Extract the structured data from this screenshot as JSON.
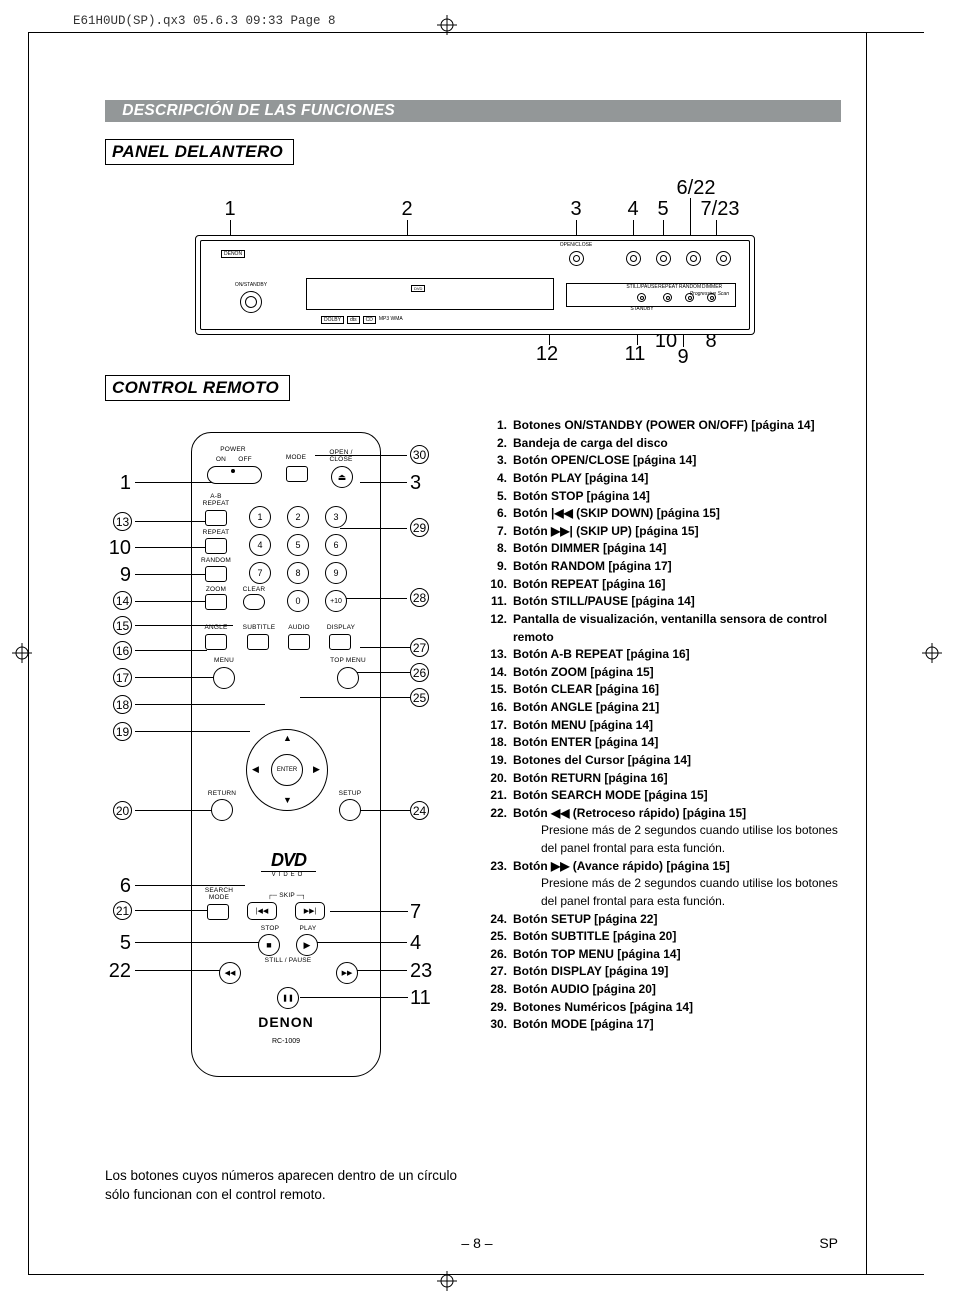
{
  "meta": {
    "header_line": "E61H0UD(SP).qx3  05.6.3 09:33  Page 8",
    "page_number": "– 8 –",
    "lang_code": "SP"
  },
  "section_bar": "DESCRIPCIÓN DE LAS FUNCIONES",
  "panel_title": "PANEL DELANTERO",
  "remote_title": "CONTROL REMOTO",
  "panel_top_numbers": {
    "n1": "1",
    "n2": "2",
    "n3": "3",
    "n4": "4",
    "n5": "5",
    "n622": "6/22",
    "n723": "7/23"
  },
  "panel_bottom_numbers": {
    "n12": "12",
    "n11": "11",
    "n10": "10",
    "n9": "9",
    "n8": "8"
  },
  "panel_labels": {
    "brand": "DENON",
    "openclose": "OPEN/CLOSE",
    "stillpause": "STILL/PAUSE",
    "repeat": "REPEAT",
    "random": "RANDOM",
    "dimmer": "DIMMER",
    "standby": "STANDBY",
    "onstb": "ON/STANDBY",
    "formats": "MP3  WMA"
  },
  "remote_labels": {
    "power": "POWER",
    "on": "ON",
    "off": "OFF",
    "mode": "MODE",
    "openclose": "OPEN /\nCLOSE",
    "abrepeat": "A-B\nREPEAT",
    "repeat": "REPEAT",
    "random": "RANDOM",
    "zoom": "ZOOM",
    "clear": "CLEAR",
    "angle": "ANGLE",
    "subtitle": "SUBTITLE",
    "audio": "AUDIO",
    "display": "DISPLAY",
    "menu": "MENU",
    "topmenu": "TOP MENU",
    "enter": "ENTER",
    "return": "RETURN",
    "setup": "SETUP",
    "searchmode": "SEARCH\nMODE",
    "skip": "SKIP",
    "stop": "STOP",
    "play": "PLAY",
    "stillpause": "STILL / PAUSE",
    "brand": "DENON",
    "model": "RC-1009",
    "d1": "1",
    "d2": "2",
    "d3": "3",
    "d4": "4",
    "d5": "5",
    "d6": "6",
    "d7": "7",
    "d8": "8",
    "d9": "9",
    "d0": "0",
    "dp10": "+10",
    "dvd": "DVD",
    "video": "VIDEO"
  },
  "left_callouts": {
    "c1": "1",
    "c13": "13",
    "c10": "10",
    "c9": "9",
    "c14": "14",
    "c15": "15",
    "c16": "16",
    "c17": "17",
    "c18": "18",
    "c19": "19",
    "c20": "20",
    "c6": "6",
    "c21": "21",
    "c5": "5",
    "c22": "22"
  },
  "right_callouts": {
    "c30": "30",
    "c3": "3",
    "c29": "29",
    "c28": "28",
    "c27": "27",
    "c26": "26",
    "c25": "25",
    "c24": "24",
    "c7": "7",
    "c4": "4",
    "c23": "23",
    "c11": "11"
  },
  "functions": [
    {
      "n": "1.",
      "b": "Botones ON/STANDBY (POWER ON/OFF) [página 14]"
    },
    {
      "n": "2.",
      "b": "Bandeja de carga del disco"
    },
    {
      "n": "3.",
      "b": "Botón OPEN/CLOSE [página 14]"
    },
    {
      "n": "4.",
      "b": "Botón PLAY [página 14]"
    },
    {
      "n": "5.",
      "b": "Botón STOP [página 14]"
    },
    {
      "n": "6.",
      "b": "Botón |◀◀ (SKIP DOWN) [página 15]"
    },
    {
      "n": "7.",
      "b": "Botón ▶▶| (SKIP UP) [página 15]"
    },
    {
      "n": "8.",
      "b": "Botón DIMMER [página 14]"
    },
    {
      "n": "9.",
      "b": "Botón RANDOM [página 17]"
    },
    {
      "n": "10.",
      "b": "Botón REPEAT [página 16]"
    },
    {
      "n": "11.",
      "b": "Botón STILL/PAUSE [página 14]"
    },
    {
      "n": "12.",
      "b": "Pantalla de visualización, ventanilla sensora de control remoto"
    },
    {
      "n": "13.",
      "b": "Botón A-B REPEAT [página 16]"
    },
    {
      "n": "14.",
      "b": "Botón ZOOM [página 15]"
    },
    {
      "n": "15.",
      "b": "Botón CLEAR [página 16]"
    },
    {
      "n": "16.",
      "b": "Botón ANGLE [página 21]"
    },
    {
      "n": "17.",
      "b": "Botón MENU [página 14]"
    },
    {
      "n": "18.",
      "b": "Botón ENTER [página 14]"
    },
    {
      "n": "19.",
      "b": "Botones del Cursor [página 14]"
    },
    {
      "n": "20.",
      "b": "Botón RETURN [página 16]"
    },
    {
      "n": "21.",
      "b": "Botón SEARCH MODE [página 15]"
    },
    {
      "n": "22.",
      "b": "Botón ◀◀ (Retroceso rápido) [página 15]",
      "sub": "Presione más de 2 segundos cuando utilise los botones del panel frontal para esta función."
    },
    {
      "n": "23.",
      "b": "Botón ▶▶ (Avance rápido) [página 15]",
      "sub": "Presione más de 2 segundos cuando utilise los botones del panel frontal para esta función."
    },
    {
      "n": "24.",
      "b": "Botón SETUP [página 22]"
    },
    {
      "n": "25.",
      "b": "Botón SUBTITLE [página 20]"
    },
    {
      "n": "26.",
      "b": "Botón TOP MENU [página 14]"
    },
    {
      "n": "27.",
      "b": "Botón DISPLAY [página 19]"
    },
    {
      "n": "28.",
      "b": "Botón AUDIO [página 20]"
    },
    {
      "n": "29.",
      "b": "Botones Numéricos [página 14]"
    },
    {
      "n": "30.",
      "b": "Botón MODE [página 17]"
    }
  ],
  "footnote": "Los botones cuyos números aparecen dentro de un círculo sólo funcionan con el control remoto.",
  "arrows": {
    "up": "▲",
    "down": "▼",
    "left": "◀",
    "right": "▶",
    "skipprev": "|◀◀",
    "skipnext": "▶▶|",
    "rew": "◀◀",
    "ff": "▶▶",
    "stop": "■",
    "play": "▶",
    "pause": "❚❚",
    "eject": "⏏"
  }
}
